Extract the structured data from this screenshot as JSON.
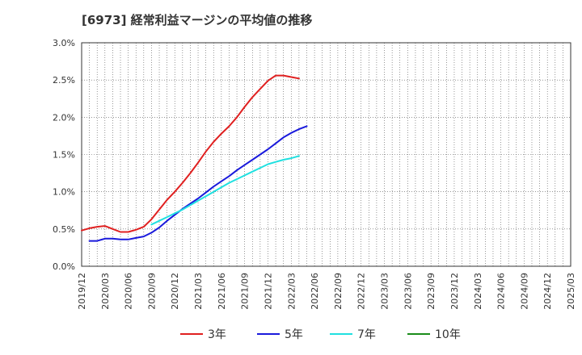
{
  "title": "[6973]  経常利益マージンの平均値の推移",
  "chart_data": {
    "type": "line",
    "title": "[6973]  経常利益マージンの平均値の推移",
    "x_ticks": [
      "2019/12",
      "2020/03",
      "2020/06",
      "2020/09",
      "2020/12",
      "2021/03",
      "2021/06",
      "2021/09",
      "2021/12",
      "2022/03",
      "2022/06",
      "2022/09",
      "2022/12",
      "2023/03",
      "2023/06",
      "2023/09",
      "2023/12",
      "2024/03",
      "2024/06",
      "2024/09",
      "2024/12",
      "2025/03"
    ],
    "y_ticks": [
      "0.0%",
      "0.5%",
      "1.0%",
      "1.5%",
      "2.0%",
      "2.5%",
      "3.0%"
    ],
    "ylim": [
      0,
      3.0
    ],
    "y_unit": "%",
    "grid": true,
    "legend_position": "bottom",
    "series": [
      {
        "name": "3年",
        "color": "#e02020",
        "start_index": 0,
        "values": [
          0.48,
          0.51,
          0.53,
          0.54,
          0.5,
          0.46,
          0.46,
          0.49,
          0.53,
          0.63,
          0.76,
          0.89,
          1.0,
          1.12,
          1.25,
          1.39,
          1.54,
          1.67,
          1.78,
          1.88,
          2.0,
          2.14,
          2.27,
          2.38,
          2.49,
          2.56,
          2.56,
          2.54,
          2.52
        ]
      },
      {
        "name": "5年",
        "color": "#1a1adc",
        "start_index": 1,
        "values": [
          0.34,
          0.34,
          0.37,
          0.37,
          0.36,
          0.36,
          0.38,
          0.4,
          0.45,
          0.52,
          0.61,
          0.69,
          0.77,
          0.84,
          0.91,
          0.99,
          1.07,
          1.14,
          1.21,
          1.29,
          1.36,
          1.43,
          1.5,
          1.57,
          1.65,
          1.73,
          1.79,
          1.84,
          1.88
        ]
      },
      {
        "name": "7年",
        "color": "#20e0e0",
        "start_index": 9,
        "values": [
          0.56,
          0.61,
          0.66,
          0.71,
          0.76,
          0.82,
          0.88,
          0.94,
          1.0,
          1.06,
          1.12,
          1.17,
          1.22,
          1.27,
          1.32,
          1.37,
          1.4,
          1.43,
          1.45,
          1.48
        ]
      },
      {
        "name": "10年",
        "color": "#1a8c1a",
        "start_index": 0,
        "values": []
      }
    ]
  }
}
